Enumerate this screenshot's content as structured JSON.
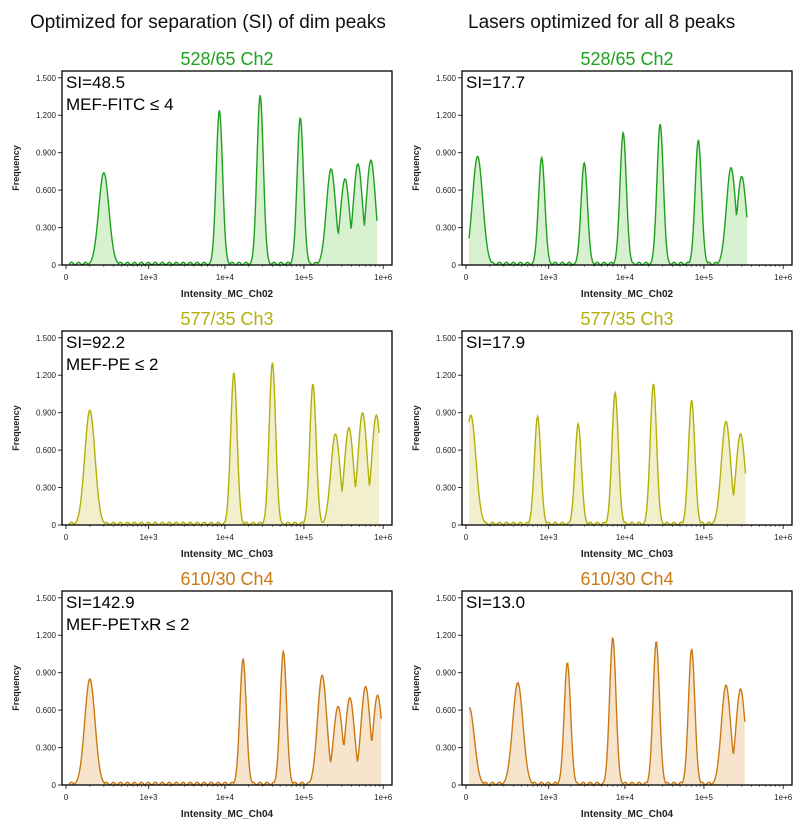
{
  "columns": {
    "left": "Optimized for separation (SI) of dim peaks",
    "right": "Lasers optimized for all 8 peaks"
  },
  "chart_data": [
    {
      "type": "area",
      "title": "528/65 Ch2",
      "xlabel": "Intensity_MC_Ch02",
      "ylabel": "Frequency",
      "x_scale": "log",
      "x_ticks": [
        "0",
        "1e+3",
        "1e+4",
        "1e+5",
        "1e+6"
      ],
      "y_ticks": [
        "0",
        "0.300",
        "0.600",
        "0.900",
        "1.200",
        "1.500"
      ],
      "ylim": [
        0,
        1.5
      ],
      "color": "#1ea01e",
      "fill": "#d6f0d0",
      "annotation": [
        "SI=48.5",
        "MEF-FITC ≤ 4"
      ],
      "peaks": [
        {
          "x": 200,
          "y": 0.74
        },
        {
          "x": 8500,
          "y": 1.24
        },
        {
          "x": 28000,
          "y": 1.36
        },
        {
          "x": 90000,
          "y": 1.18
        },
        {
          "x": 220000,
          "y": 0.77
        },
        {
          "x": 330000,
          "y": 0.69
        },
        {
          "x": 480000,
          "y": 0.81
        },
        {
          "x": 700000,
          "y": 0.84
        }
      ],
      "data_end": 850000
    },
    {
      "type": "area",
      "title": "528/65 Ch2",
      "xlabel": "Intensity_MC_Ch02",
      "ylabel": "Frequency",
      "x_scale": "log",
      "x_ticks": [
        "0",
        "1e+3",
        "1e+4",
        "1e+5",
        "1e+6"
      ],
      "y_ticks": [
        "0",
        "0.300",
        "0.600",
        "0.900",
        "1.200",
        "1.500"
      ],
      "ylim": [
        0,
        1.5
      ],
      "color": "#1ea01e",
      "fill": "#d6f0d0",
      "annotation": [
        "SI=17.7"
      ],
      "peaks": [
        {
          "x": 40,
          "y": 0.87
        },
        {
          "x": 800,
          "y": 0.86
        },
        {
          "x": 3000,
          "y": 0.82
        },
        {
          "x": 9500,
          "y": 1.06
        },
        {
          "x": 28000,
          "y": 1.13
        },
        {
          "x": 85000,
          "y": 1.0
        },
        {
          "x": 220000,
          "y": 0.78
        },
        {
          "x": 300000,
          "y": 0.71
        }
      ],
      "data_end": 350000
    },
    {
      "type": "area",
      "title": "577/35 Ch3",
      "xlabel": "Intensity_MC_Ch03",
      "ylabel": "Frequency",
      "x_scale": "log",
      "x_ticks": [
        "0",
        "1e+3",
        "1e+4",
        "1e+5",
        "1e+6"
      ],
      "y_ticks": [
        "0",
        "0.300",
        "0.600",
        "0.900",
        "1.200",
        "1.500"
      ],
      "ylim": [
        0,
        1.5
      ],
      "color": "#b3b00a",
      "fill": "#f2f0cc",
      "annotation": [
        "SI=92.2",
        "MEF-PE ≤ 2"
      ],
      "peaks": [
        {
          "x": 100,
          "y": 0.92
        },
        {
          "x": 13000,
          "y": 1.22
        },
        {
          "x": 40000,
          "y": 1.3
        },
        {
          "x": 130000,
          "y": 1.13
        },
        {
          "x": 250000,
          "y": 0.73
        },
        {
          "x": 370000,
          "y": 0.78
        },
        {
          "x": 550000,
          "y": 0.9
        },
        {
          "x": 820000,
          "y": 0.88
        }
      ],
      "data_end": 900000
    },
    {
      "type": "area",
      "title": "577/35 Ch3",
      "xlabel": "Intensity_MC_Ch03",
      "ylabel": "Frequency",
      "x_scale": "log",
      "x_ticks": [
        "0",
        "1e+3",
        "1e+4",
        "1e+5",
        "1e+6"
      ],
      "y_ticks": [
        "0",
        "0.300",
        "0.600",
        "0.900",
        "1.200",
        "1.500"
      ],
      "ylim": [
        0,
        1.5
      ],
      "color": "#b3b00a",
      "fill": "#f2f0cc",
      "annotation": [
        "SI=17.9"
      ],
      "peaks": [
        {
          "x": 15,
          "y": 0.88
        },
        {
          "x": 700,
          "y": 0.87
        },
        {
          "x": 2500,
          "y": 0.81
        },
        {
          "x": 7500,
          "y": 1.06
        },
        {
          "x": 23000,
          "y": 1.13
        },
        {
          "x": 70000,
          "y": 1.0
        },
        {
          "x": 190000,
          "y": 0.83
        },
        {
          "x": 290000,
          "y": 0.73
        }
      ],
      "data_end": 340000
    },
    {
      "type": "area",
      "title": "610/30 Ch4",
      "xlabel": "Intensity_MC_Ch04",
      "ylabel": "Frequency",
      "x_scale": "log",
      "x_ticks": [
        "0",
        "1e+3",
        "1e+4",
        "1e+5",
        "1e+6"
      ],
      "y_ticks": [
        "0",
        "0.300",
        "0.600",
        "0.900",
        "1.200",
        "1.500"
      ],
      "ylim": [
        0,
        1.5
      ],
      "color": "#c97a16",
      "fill": "#f7e4cc",
      "annotation": [
        "SI=142.9",
        "MEF-PETxR ≤ 2"
      ],
      "peaks": [
        {
          "x": 100,
          "y": 0.85
        },
        {
          "x": 17000,
          "y": 1.01
        },
        {
          "x": 55000,
          "y": 1.07
        },
        {
          "x": 170000,
          "y": 0.88
        },
        {
          "x": 270000,
          "y": 0.63
        },
        {
          "x": 380000,
          "y": 0.7
        },
        {
          "x": 600000,
          "y": 0.79
        },
        {
          "x": 850000,
          "y": 0.72
        }
      ],
      "data_end": 950000
    },
    {
      "type": "area",
      "title": "610/30 Ch4",
      "xlabel": "Intensity_MC_Ch04",
      "ylabel": "Frequency",
      "x_scale": "log",
      "x_ticks": [
        "0",
        "1e+3",
        "1e+4",
        "1e+5",
        "1e+6"
      ],
      "y_ticks": [
        "0",
        "0.300",
        "0.600",
        "0.900",
        "1.200",
        "1.500"
      ],
      "ylim": [
        0,
        1.5
      ],
      "color": "#c97a16",
      "fill": "#f7e4cc",
      "annotation": [
        "SI=13.0"
      ],
      "peaks": [
        {
          "x": 10,
          "y": 0.62
        },
        {
          "x": 350,
          "y": 0.82
        },
        {
          "x": 1800,
          "y": 0.98
        },
        {
          "x": 7000,
          "y": 1.18
        },
        {
          "x": 25000,
          "y": 1.15
        },
        {
          "x": 70000,
          "y": 1.09
        },
        {
          "x": 190000,
          "y": 0.8
        },
        {
          "x": 290000,
          "y": 0.77
        }
      ],
      "data_end": 330000
    }
  ]
}
